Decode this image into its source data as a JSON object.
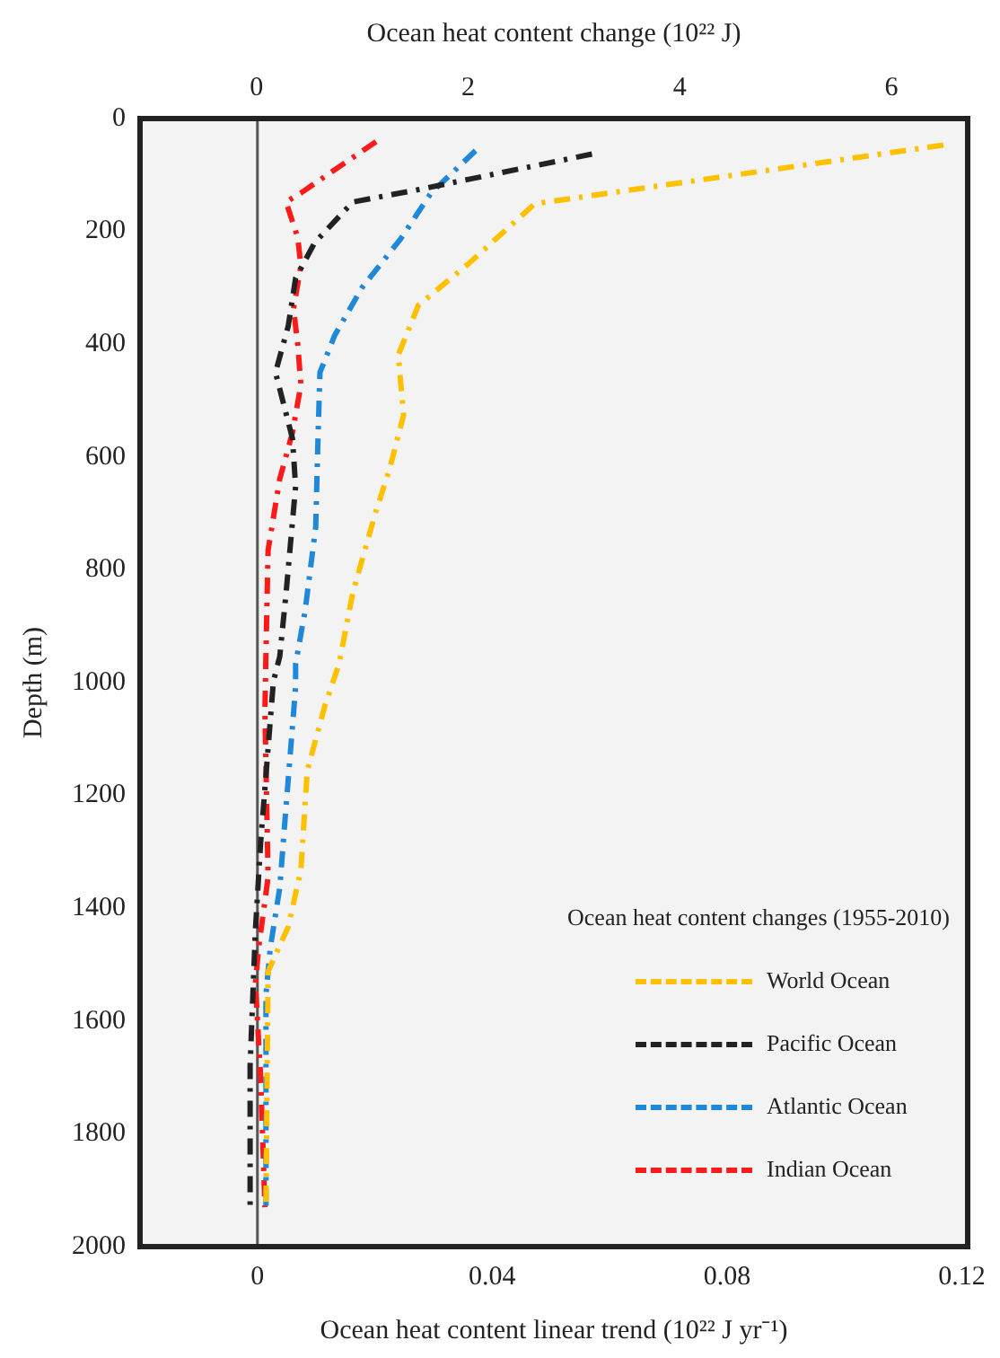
{
  "chart_data": {
    "type": "line",
    "xlabel": "Ocean heat content linear trend (10²² J yr⁻¹)",
    "x2label": "Ocean heat content change (10²² J)",
    "ylabel": "Depth (m)",
    "legend_title": "Ocean heat content changes (1955-2010)",
    "legend": "bottom right",
    "grid": false,
    "marker": "none",
    "line_style": "dashed",
    "xlim": [
      -0.02,
      0.121
    ],
    "xticks": [
      0,
      0.04,
      0.08,
      0.12
    ],
    "x2lim": [
      -1.1,
      6.72
    ],
    "x2ticks": [
      0,
      2,
      4,
      6
    ],
    "ylim": [
      2000,
      0
    ],
    "yticks": [
      0,
      200,
      400,
      600,
      800,
      1000,
      1200,
      1400,
      1600,
      1800,
      2000
    ],
    "ref_lines": [
      {
        "axis": "x",
        "value": 0,
        "color": "#555555"
      }
    ],
    "series": [
      {
        "name": "World Ocean",
        "color": "#ffc000",
        "axis": "x2",
        "x": [
          6.49,
          2.63,
          2.0,
          1.53,
          1.34,
          1.39,
          1.26,
          1.12,
          0.91,
          0.78,
          0.65,
          0.48,
          0.42,
          0.3,
          0.11,
          0.09
        ],
        "values": [
          47,
          151,
          258,
          331,
          419,
          526,
          620,
          702,
          841,
          967,
          1039,
          1156,
          1332,
          1433,
          1512,
          1930
        ]
      },
      {
        "name": "Pacific Ocean",
        "color": "#222222",
        "axis": "x2",
        "x": [
          3.17,
          1.53,
          0.91,
          0.55,
          0.37,
          0.3,
          0.18,
          0.34,
          0.37,
          0.28,
          0.22,
          0.16,
          0.04,
          -0.01,
          -0.06,
          -0.06
        ],
        "values": [
          63,
          126,
          148,
          220,
          283,
          368,
          450,
          567,
          652,
          841,
          954,
          998,
          1282,
          1439,
          1679,
          1930
        ]
      },
      {
        "name": "Atlantic Ocean",
        "color": "#1f88d8",
        "axis": "x2",
        "x": [
          2.07,
          1.65,
          1.36,
          1.0,
          0.74,
          0.6,
          0.58,
          0.56,
          0.46,
          0.37,
          0.37,
          0.28,
          0.22,
          0.13,
          0.09,
          0.09
        ],
        "values": [
          57,
          132,
          214,
          299,
          384,
          450,
          576,
          724,
          872,
          967,
          1008,
          1219,
          1364,
          1471,
          1553,
          1930
        ]
      },
      {
        "name": "Indian Ocean",
        "color": "#ff1a1a",
        "axis": "x2",
        "x": [
          1.13,
          0.66,
          0.42,
          0.28,
          0.39,
          0.42,
          0.35,
          0.39,
          0.42,
          0.34,
          0.22,
          0.11,
          0.09,
          0.08,
          0.11,
          0.02,
          -0.01,
          0.04,
          0.08
        ],
        "values": [
          41,
          101,
          132,
          148,
          211,
          261,
          337,
          400,
          472,
          557,
          639,
          765,
          945,
          1049,
          1345,
          1471,
          1534,
          1701,
          1930
        ]
      }
    ]
  }
}
